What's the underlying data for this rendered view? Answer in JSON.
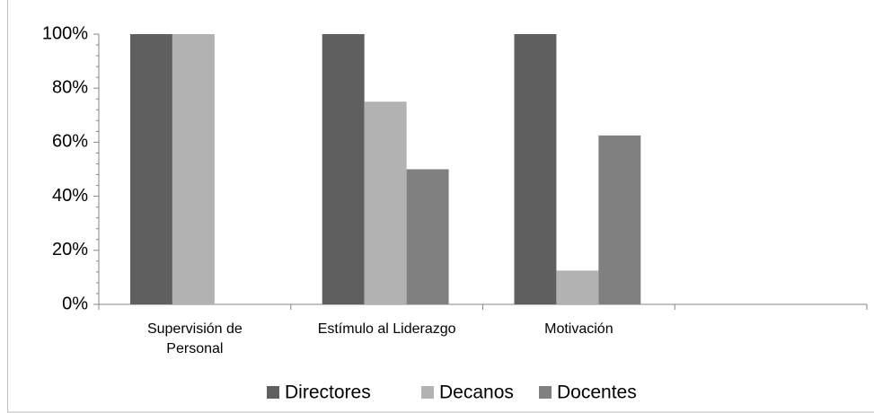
{
  "chart_data": {
    "type": "bar",
    "categories": [
      "Supervisión de Personal",
      "Estímulo al Liderazgo",
      "Motivación",
      null
    ],
    "series": [
      {
        "name": "Directores",
        "color": "#5f5f5f",
        "values": [
          100,
          100,
          100,
          null
        ]
      },
      {
        "name": "Decanos",
        "color": "#b2b2b2",
        "values": [
          100,
          75,
          12.5,
          null
        ]
      },
      {
        "name": "Docentes",
        "color": "#808080",
        "values": [
          0,
          50,
          62.5,
          null
        ]
      }
    ],
    "ylim": [
      0,
      100
    ],
    "yticks": [
      {
        "value": 0,
        "label": "0%"
      },
      {
        "value": 20,
        "label": "20%"
      },
      {
        "value": 40,
        "label": "40%"
      },
      {
        "value": 60,
        "label": "60%"
      },
      {
        "value": 80,
        "label": "80%"
      },
      {
        "value": 100,
        "label": "100%"
      }
    ],
    "grid": false,
    "legend": "bottom"
  }
}
